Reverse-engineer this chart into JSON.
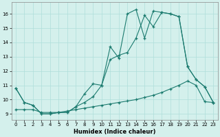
{
  "xlabel": "Humidex (Indice chaleur)",
  "bg_color": "#d4f0ec",
  "line_color": "#1a7a6e",
  "grid_color": "#aededa",
  "xlim": [
    -0.5,
    23.5
  ],
  "ylim": [
    8.6,
    16.8
  ],
  "xticks": [
    0,
    1,
    2,
    3,
    4,
    5,
    6,
    7,
    8,
    9,
    10,
    11,
    12,
    13,
    14,
    15,
    16,
    17,
    18,
    19,
    20,
    21,
    22,
    23
  ],
  "yticks": [
    9,
    10,
    11,
    12,
    13,
    14,
    15,
    16
  ],
  "series1_x": [
    0,
    1,
    2,
    3,
    4,
    5,
    6,
    7,
    8,
    9,
    10,
    11,
    12,
    13,
    14,
    15,
    16,
    17,
    18,
    19,
    20,
    21,
    22,
    23
  ],
  "series1_y": [
    10.8,
    9.8,
    9.6,
    9.0,
    9.0,
    9.1,
    9.1,
    9.5,
    9.8,
    10.2,
    11.0,
    13.7,
    12.9,
    16.0,
    16.3,
    14.3,
    16.2,
    16.1,
    16.0,
    15.8,
    12.3,
    11.4,
    10.9,
    9.8
  ],
  "series2_x": [
    0,
    1,
    2,
    3,
    4,
    5,
    6,
    7,
    8,
    9,
    10,
    11,
    12,
    13,
    14,
    15,
    16,
    17,
    18,
    19,
    20,
    21,
    22,
    23
  ],
  "series2_y": [
    10.8,
    9.8,
    9.6,
    9.0,
    9.0,
    9.1,
    9.1,
    9.5,
    10.4,
    11.1,
    11.0,
    12.8,
    13.1,
    13.3,
    14.3,
    15.9,
    15.1,
    16.1,
    16.0,
    15.8,
    12.3,
    11.4,
    10.9,
    9.8
  ],
  "series3_x": [
    0,
    1,
    2,
    3,
    4,
    5,
    6,
    7,
    8,
    9,
    10,
    11,
    12,
    13,
    14,
    15,
    16,
    17,
    18,
    19,
    20,
    21,
    22,
    23
  ],
  "series3_y": [
    9.3,
    9.3,
    9.3,
    9.1,
    9.1,
    9.1,
    9.2,
    9.3,
    9.4,
    9.5,
    9.6,
    9.7,
    9.8,
    9.9,
    10.0,
    10.15,
    10.3,
    10.5,
    10.75,
    11.0,
    11.3,
    11.0,
    9.85,
    9.8
  ]
}
